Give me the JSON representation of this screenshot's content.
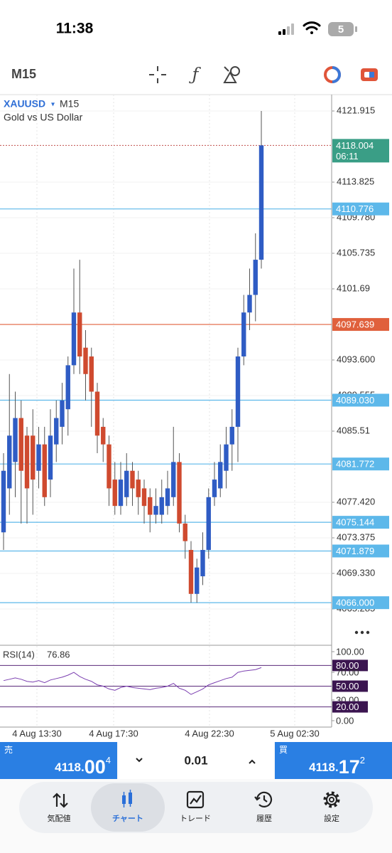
{
  "status_bar": {
    "time": "11:38",
    "battery": "5"
  },
  "toolbar": {
    "timeframe": "M15"
  },
  "chart_data": {
    "type": "candlestick",
    "symbol": "XAUUSD",
    "timeframe": "M15",
    "subtitle": "Gold vs US Dollar",
    "up_color": "#2f5cc4",
    "down_color": "#cf4a2f",
    "open": [
      4074,
      4079,
      4082,
      4087,
      4085,
      4085,
      4081,
      4084,
      4080,
      4084,
      4086,
      4088,
      4093,
      4099,
      4095,
      4094,
      4090,
      4086,
      4084,
      4080,
      4077,
      4078,
      4081,
      4080,
      4079,
      4078,
      4076,
      4076,
      4077,
      4078,
      4082,
      4075,
      4072,
      4067,
      4069,
      4072,
      4078,
      4079,
      4081,
      4084,
      4086,
      4094,
      4099,
      4101,
      4105
    ],
    "high": [
      4083,
      4092,
      4090,
      4089,
      4086,
      4088,
      4086,
      4086,
      4088,
      4089,
      4091,
      4094,
      4104,
      4105,
      4097,
      4095,
      4091,
      4087,
      4085,
      4082,
      4082,
      4083,
      4082,
      4081,
      4080,
      4079,
      4079,
      4080,
      4081,
      4086,
      4083,
      4076,
      4073,
      4071,
      4074,
      4079,
      4082,
      4084,
      4086,
      4088,
      4095,
      4101,
      4104,
      4108,
      4121.915
    ],
    "low": [
      4072,
      4076,
      4078,
      4075,
      4075,
      4076,
      4079,
      4077,
      4078,
      4082,
      4084,
      4085,
      4092,
      4092,
      4089,
      4086,
      4083,
      4082,
      4077,
      4076,
      4076,
      4077,
      4077,
      4076,
      4075,
      4074,
      4075,
      4075,
      4076,
      4077,
      4074,
      4071,
      4066,
      4066,
      4068,
      4071,
      4077,
      4078,
      4079,
      4081,
      4082,
      4093,
      4097,
      4098,
      4104
    ],
    "close": [
      4081,
      4085,
      4087,
      4081,
      4079,
      4080,
      4084,
      4078,
      4085,
      4087,
      4089,
      4093,
      4099,
      4094,
      4092,
      4090,
      4085,
      4084,
      4079,
      4077,
      4080,
      4081,
      4079,
      4078,
      4077,
      4076,
      4077,
      4078,
      4079,
      4082,
      4075,
      4073,
      4067,
      4070,
      4072,
      4078,
      4080,
      4082,
      4084,
      4086,
      4094,
      4099,
      4101,
      4105,
      4118.004
    ],
    "ylim": [
      4061.32,
      4123.776
    ],
    "yticks": [
      4121.915,
      4113.825,
      {
        "value": 4109.78,
        "label": "4109.780"
      },
      4105.735,
      4101.69,
      {
        "value": 4093.6,
        "label": "4093.600"
      },
      4089.555,
      4085.51,
      {
        "value": 4077.42,
        "label": "4077.420"
      },
      4073.375,
      {
        "value": 4069.33,
        "label": "4069.330"
      },
      4065.285
    ],
    "current_price": {
      "value": 4118.004,
      "countdown": "06:11",
      "color": "#3a9e86"
    },
    "price_lines": [
      {
        "value": 4110.776,
        "color": "#5db8ea"
      },
      {
        "value": 4097.639,
        "color": "#e0603c"
      },
      {
        "value": 4089.03,
        "label": "4089.030",
        "color": "#5db8ea"
      },
      {
        "value": 4081.772,
        "color": "#5db8ea"
      },
      {
        "value": 4075.144,
        "color": "#5db8ea"
      },
      {
        "value": 4071.879,
        "color": "#5db8ea"
      },
      {
        "value": 4066,
        "label": "4066.000",
        "color": "#5db8ea"
      }
    ],
    "x_labels": [
      "4 Aug 13:30",
      "4 Aug 17:30",
      "4 Aug 22:30",
      "5 Aug 02:30"
    ]
  },
  "rsi": {
    "label": "RSI(14)",
    "color": "#7b3fb0",
    "values": [
      58,
      60,
      62,
      60,
      57,
      56,
      58,
      55,
      59,
      61,
      63,
      66,
      70,
      64,
      60,
      57,
      52,
      50,
      46,
      44,
      48,
      50,
      48,
      47,
      46,
      45,
      47,
      48,
      50,
      54,
      47,
      44,
      38,
      42,
      46,
      52,
      55,
      58,
      61,
      63,
      70,
      72,
      73,
      74,
      76.86
    ],
    "ylim": [
      0,
      100
    ],
    "yticks": [
      {
        "value": 100,
        "label": "100.00"
      },
      {
        "value": 80,
        "label": "80.00",
        "highlight": true
      },
      {
        "value": 70,
        "label": "70.00"
      },
      {
        "value": 50,
        "label": "50.00",
        "highlight": true
      },
      {
        "value": 30,
        "label": "30.00"
      },
      {
        "value": 20,
        "label": "20.00",
        "highlight": true
      },
      {
        "value": 0,
        "label": "0.00"
      }
    ]
  },
  "trade_bar": {
    "sell": {
      "label": "売",
      "price_main": "4118.",
      "price_big": "00",
      "price_sup": "4"
    },
    "lot": "0.01",
    "buy": {
      "label": "買",
      "price_main": "4118.",
      "price_big": "17",
      "price_sup": "2"
    }
  },
  "nav": [
    "気配値",
    "チャート",
    "トレード",
    "履歴",
    "設定"
  ]
}
